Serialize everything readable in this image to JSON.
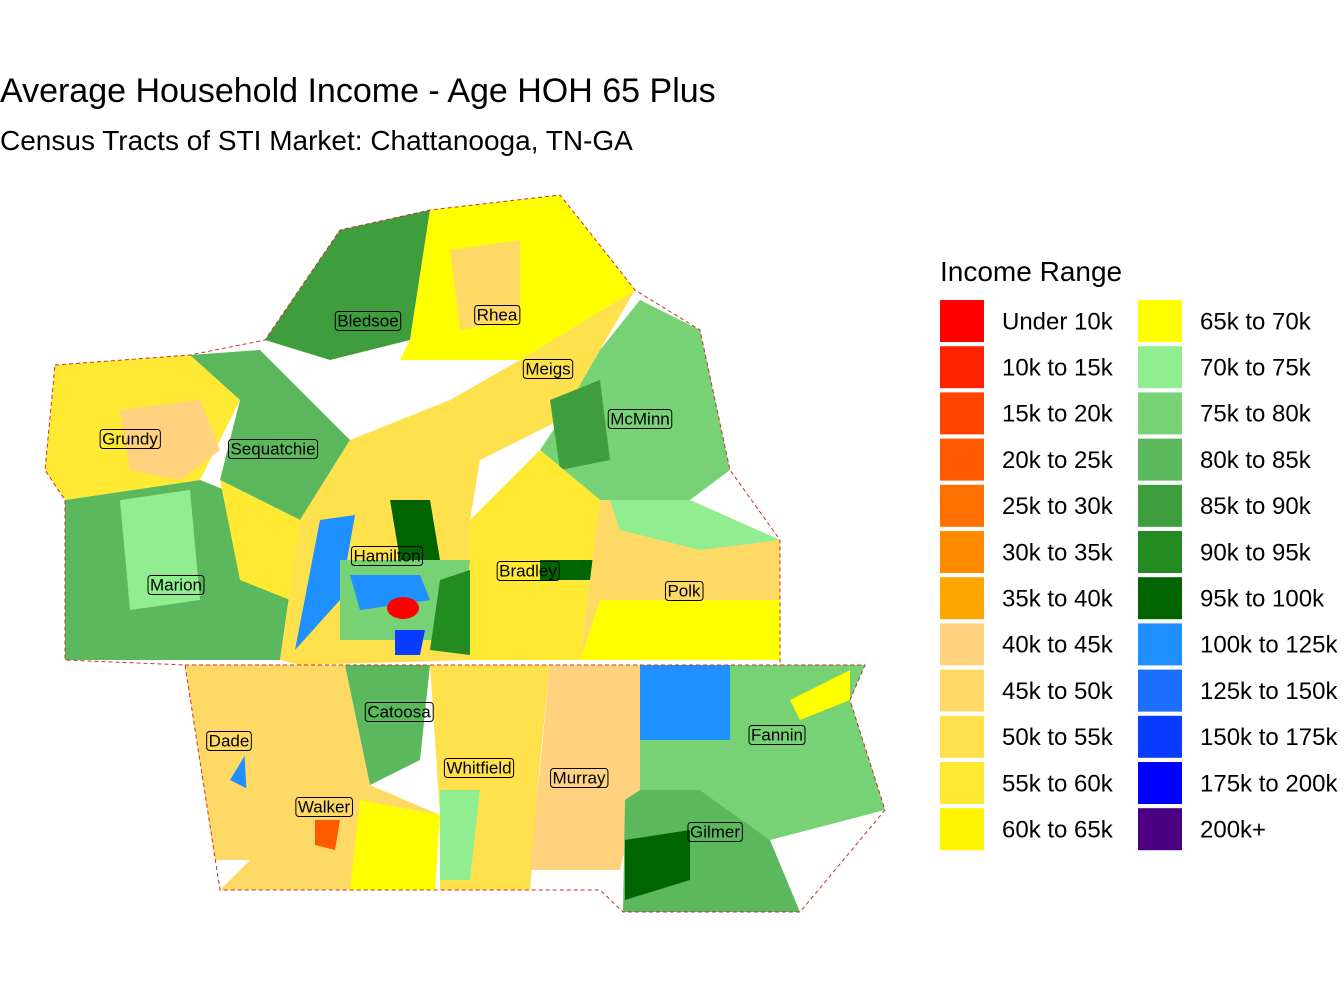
{
  "title": "Average Household Income - Age HOH 65 Plus",
  "subtitle": "Census Tracts of STI Market: Chattanooga, TN-GA",
  "legend": {
    "title": "Income Range",
    "items": [
      {
        "label": "Under 10k",
        "color": "#FF0000"
      },
      {
        "label": "10k to 15k",
        "color": "#FF2200"
      },
      {
        "label": "15k to 20k",
        "color": "#FF4400"
      },
      {
        "label": "20k to 25k",
        "color": "#FF5A00"
      },
      {
        "label": "25k to 30k",
        "color": "#FF7000"
      },
      {
        "label": "30k to 35k",
        "color": "#FF8C00"
      },
      {
        "label": "35k to 40k",
        "color": "#FFA500"
      },
      {
        "label": "40k to 45k",
        "color": "#FFD27F"
      },
      {
        "label": "45k to 50k",
        "color": "#FFD966"
      },
      {
        "label": "50k to 55k",
        "color": "#FFE04D"
      },
      {
        "label": "55k to 60k",
        "color": "#FFE933"
      },
      {
        "label": "60k to 65k",
        "color": "#FFF500"
      },
      {
        "label": "65k to 70k",
        "color": "#FFFF00"
      },
      {
        "label": "70k to 75k",
        "color": "#90EE90"
      },
      {
        "label": "75k to 80k",
        "color": "#76D275"
      },
      {
        "label": "80k to 85k",
        "color": "#5CB85C"
      },
      {
        "label": "85k to 90k",
        "color": "#3E9E3E"
      },
      {
        "label": "90k to 95k",
        "color": "#228B22"
      },
      {
        "label": "95k to 100k",
        "color": "#006400"
      },
      {
        "label": "100k to 125k",
        "color": "#1E90FF"
      },
      {
        "label": "125k to 150k",
        "color": "#1C6EFF"
      },
      {
        "label": "150k to 175k",
        "color": "#0A3CFF"
      },
      {
        "label": "175k to 200k",
        "color": "#0000FF"
      },
      {
        "label": "200k+",
        "color": "#4B0082"
      }
    ]
  },
  "counties": [
    "Bledsoe",
    "Rhea",
    "Meigs",
    "McMinn",
    "Grundy",
    "Sequatchie",
    "Hamilton",
    "Bradley",
    "Polk",
    "Marion",
    "Catoosa",
    "Dade",
    "Fannin",
    "Whitfield",
    "Murray",
    "Walker",
    "Gilmer"
  ]
}
